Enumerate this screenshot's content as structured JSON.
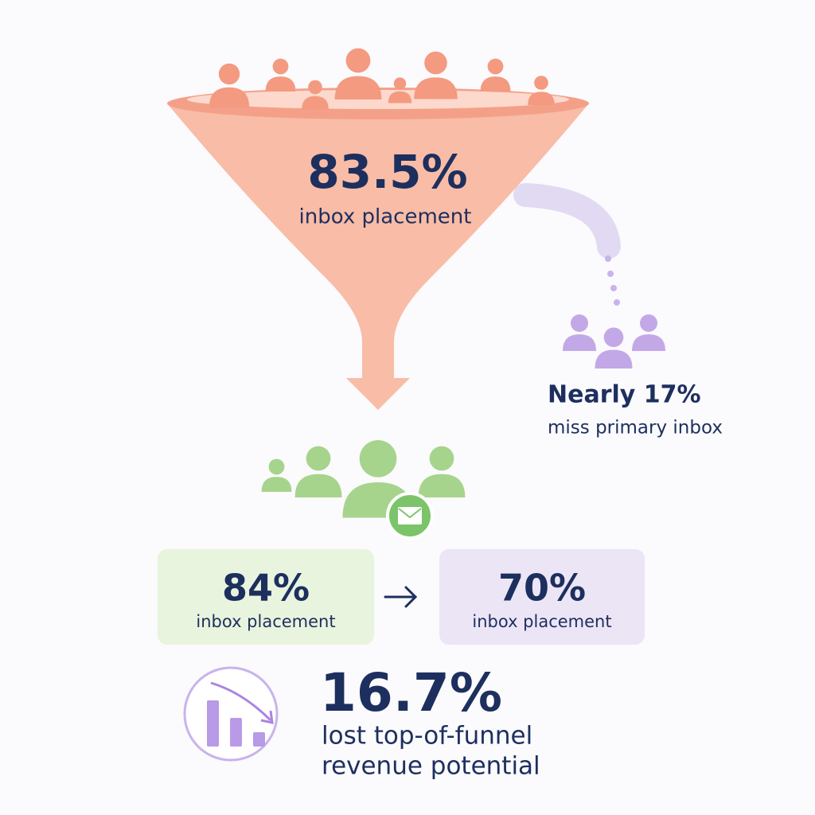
{
  "funnel": {
    "stat": "83.5%",
    "label": "inbox placement"
  },
  "missed": {
    "stat": "Nearly 17%",
    "label": "miss primary inbox"
  },
  "comparison": {
    "before": {
      "stat": "84%",
      "label": "inbox placement"
    },
    "after": {
      "stat": "70%",
      "label": "inbox placement"
    }
  },
  "loss": {
    "stat": "16.7%",
    "line1": "lost top-of-funnel",
    "line2": "revenue potential"
  }
}
